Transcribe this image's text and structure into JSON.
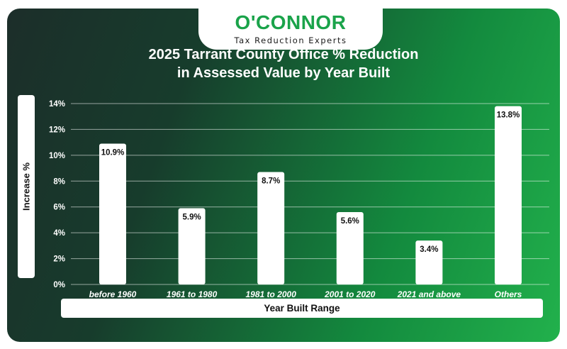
{
  "logo": {
    "name": "O'CONNOR",
    "tagline": "Tax Reduction Experts"
  },
  "colors": {
    "brand_green": "#1aa34a",
    "bar": "#ffffff",
    "label": "#ffffff"
  },
  "chart_data": {
    "type": "bar",
    "title": "2025 Tarrant County Office % Reduction in Assessed Value by Year Built",
    "title_lines": [
      "2025 Tarrant County Office % Reduction",
      "in Assessed Value by Year Built"
    ],
    "xlabel": "Year Built Range",
    "ylabel": "Increase %",
    "categories": [
      "before 1960",
      "1961 to 1980",
      "1981 to 2000",
      "2001 to 2020",
      "2021 and above",
      "Others"
    ],
    "values": [
      10.9,
      5.9,
      8.7,
      5.6,
      3.4,
      13.8
    ],
    "value_labels": [
      "10.9%",
      "5.9%",
      "8.7%",
      "5.6%",
      "3.4%",
      "13.8%"
    ],
    "y_ticks": [
      "0%",
      "2%",
      "4%",
      "6%",
      "8%",
      "10%",
      "12%",
      "14%"
    ],
    "ylim": [
      0,
      14
    ],
    "grid": true,
    "legend": "none"
  }
}
